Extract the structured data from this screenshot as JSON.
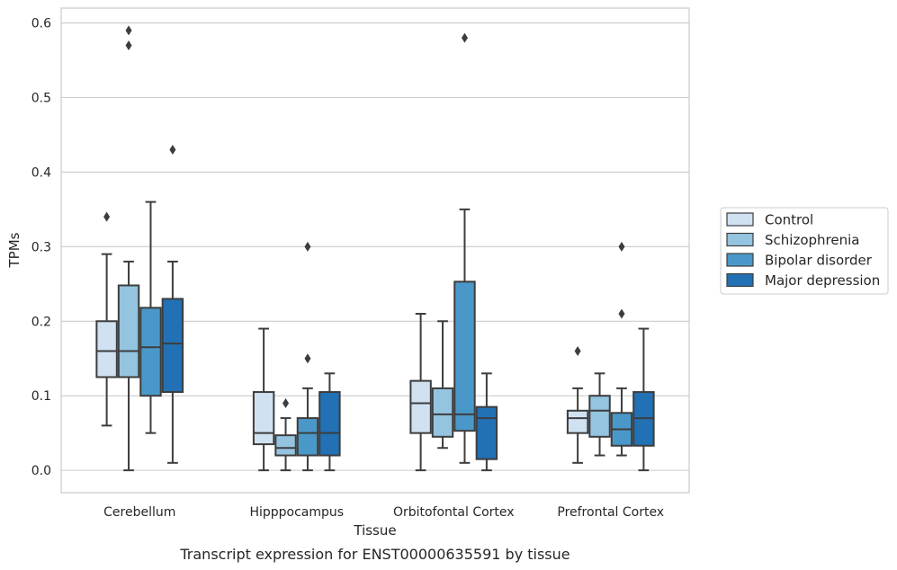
{
  "caption": "Transcript expression for ENST00000635591 by tissue",
  "chart_data": {
    "type": "box",
    "xlabel": "Tissue",
    "ylabel": "TPMs",
    "ylim": [
      -0.03,
      0.62
    ],
    "yticks": [
      "0.0",
      "0.1",
      "0.2",
      "0.3",
      "0.4",
      "0.5",
      "0.6"
    ],
    "grid": "horizontal",
    "legend_position": "right",
    "categories": [
      "Cerebellum",
      "Hipppocampus",
      "Orbitofontal Cortex",
      "Prefrontal Cortex"
    ],
    "series": [
      {
        "name": "Control",
        "color": "#d0e1f2",
        "boxes": [
          {
            "whislo": 0.06,
            "q1": 0.125,
            "med": 0.16,
            "q3": 0.2,
            "whishi": 0.29,
            "fliers": [
              0.34
            ]
          },
          {
            "whislo": 0.0,
            "q1": 0.035,
            "med": 0.05,
            "q3": 0.105,
            "whishi": 0.19,
            "fliers": []
          },
          {
            "whislo": 0.0,
            "q1": 0.05,
            "med": 0.09,
            "q3": 0.12,
            "whishi": 0.21,
            "fliers": []
          },
          {
            "whislo": 0.01,
            "q1": 0.05,
            "med": 0.07,
            "q3": 0.08,
            "whishi": 0.11,
            "fliers": [
              0.16
            ]
          }
        ]
      },
      {
        "name": "Schizophrenia",
        "color": "#94c4df",
        "boxes": [
          {
            "whislo": 0.0,
            "q1": 0.125,
            "med": 0.16,
            "q3": 0.248,
            "whishi": 0.28,
            "fliers": [
              0.57,
              0.59
            ]
          },
          {
            "whislo": 0.0,
            "q1": 0.02,
            "med": 0.03,
            "q3": 0.047,
            "whishi": 0.07,
            "fliers": [
              0.09
            ]
          },
          {
            "whislo": 0.03,
            "q1": 0.045,
            "med": 0.075,
            "q3": 0.11,
            "whishi": 0.2,
            "fliers": []
          },
          {
            "whislo": 0.02,
            "q1": 0.045,
            "med": 0.08,
            "q3": 0.1,
            "whishi": 0.13,
            "fliers": []
          }
        ]
      },
      {
        "name": "Bipolar disorder",
        "color": "#4a98c9",
        "boxes": [
          {
            "whislo": 0.05,
            "q1": 0.1,
            "med": 0.165,
            "q3": 0.218,
            "whishi": 0.36,
            "fliers": []
          },
          {
            "whislo": 0.0,
            "q1": 0.02,
            "med": 0.05,
            "q3": 0.07,
            "whishi": 0.11,
            "fliers": [
              0.15,
              0.3
            ]
          },
          {
            "whislo": 0.01,
            "q1": 0.053,
            "med": 0.075,
            "q3": 0.253,
            "whishi": 0.35,
            "fliers": [
              0.58
            ]
          },
          {
            "whislo": 0.02,
            "q1": 0.033,
            "med": 0.055,
            "q3": 0.077,
            "whishi": 0.11,
            "fliers": [
              0.21,
              0.3
            ]
          }
        ]
      },
      {
        "name": "Major depression",
        "color": "#2271b5",
        "boxes": [
          {
            "whislo": 0.01,
            "q1": 0.105,
            "med": 0.17,
            "q3": 0.23,
            "whishi": 0.28,
            "fliers": [
              0.43
            ]
          },
          {
            "whislo": 0.0,
            "q1": 0.02,
            "med": 0.05,
            "q3": 0.105,
            "whishi": 0.13,
            "fliers": []
          },
          {
            "whislo": 0.0,
            "q1": 0.015,
            "med": 0.07,
            "q3": 0.085,
            "whishi": 0.13,
            "fliers": []
          },
          {
            "whislo": 0.0,
            "q1": 0.033,
            "med": 0.07,
            "q3": 0.105,
            "whishi": 0.19,
            "fliers": []
          }
        ]
      }
    ]
  }
}
